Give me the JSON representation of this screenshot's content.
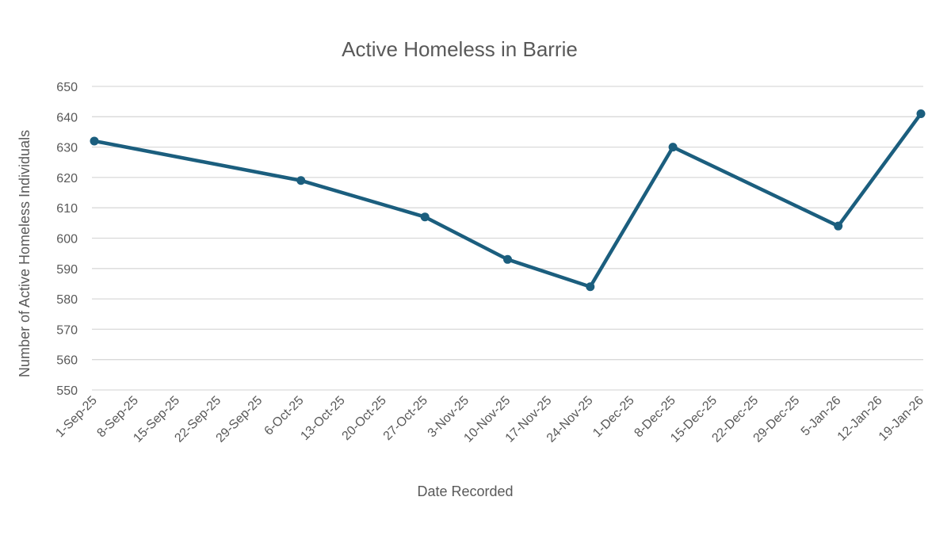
{
  "chart_data": {
    "type": "line",
    "title": "Active Homeless in Barrie",
    "xlabel": "Date Recorded",
    "ylabel": "Number of Active Homeless Individuals",
    "ylim": [
      550,
      650
    ],
    "yticks": [
      550,
      560,
      570,
      580,
      590,
      600,
      610,
      620,
      630,
      640,
      650
    ],
    "xticks": [
      "1-Sep-25",
      "8-Sep-25",
      "15-Sep-25",
      "22-Sep-25",
      "29-Sep-25",
      "6-Oct-25",
      "13-Oct-25",
      "20-Oct-25",
      "27-Oct-25",
      "3-Nov-25",
      "10-Nov-25",
      "17-Nov-25",
      "24-Nov-25",
      "1-Dec-25",
      "8-Dec-25",
      "15-Dec-25",
      "22-Dec-25",
      "29-Dec-25",
      "5-Jan-26",
      "12-Jan-26",
      "19-Jan-26"
    ],
    "grid": true,
    "legend": null,
    "series": [
      {
        "name": "Active Homeless",
        "color": "#1b5e7e",
        "x": [
          "1-Sep-25",
          "6-Oct-25",
          "27-Oct-25",
          "10-Nov-25",
          "24-Nov-25",
          "8-Dec-25",
          "5-Jan-26",
          "19-Jan-26"
        ],
        "x_tick_index": [
          0,
          5,
          8,
          10,
          12,
          14,
          18,
          20
        ],
        "values": [
          632,
          619,
          607,
          593,
          584,
          630,
          604,
          641
        ]
      }
    ]
  }
}
